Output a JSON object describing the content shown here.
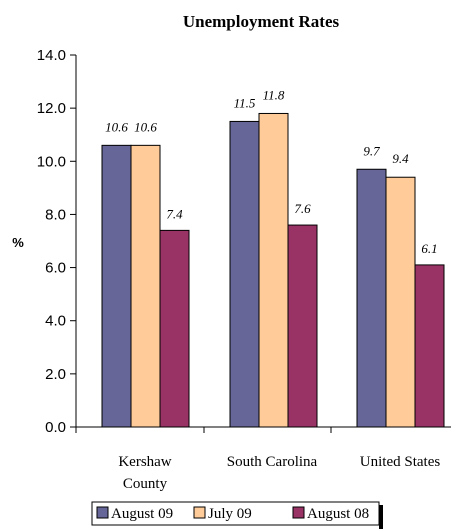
{
  "chart_data": {
    "type": "bar",
    "title": "Unemployment Rates",
    "ylabel": "%",
    "xlabel": "",
    "ylim": [
      0,
      14
    ],
    "y_ticks": [
      "0.0",
      "2.0",
      "4.0",
      "6.0",
      "8.0",
      "10.0",
      "12.0",
      "14.0"
    ],
    "categories": [
      "Kershaw County",
      "South Carolina",
      "United States"
    ],
    "category_label_lines": [
      [
        "Kershaw",
        "County"
      ],
      [
        "South Carolina"
      ],
      [
        "United States"
      ]
    ],
    "series": [
      {
        "name": "August 09",
        "values": [
          10.6,
          11.5,
          9.7
        ],
        "labels": [
          "10.6",
          "11.5",
          "9.7"
        ],
        "color": "#666699"
      },
      {
        "name": "July 09",
        "values": [
          10.6,
          11.8,
          9.4
        ],
        "labels": [
          "10.6",
          "11.8",
          "9.4"
        ],
        "color": "#FFCC99"
      },
      {
        "name": "August 08",
        "values": [
          7.4,
          7.6,
          6.1
        ],
        "labels": [
          "7.4",
          "7.6",
          "6.1"
        ],
        "color": "#993366"
      }
    ],
    "grid": false,
    "legend_position": "bottom"
  }
}
